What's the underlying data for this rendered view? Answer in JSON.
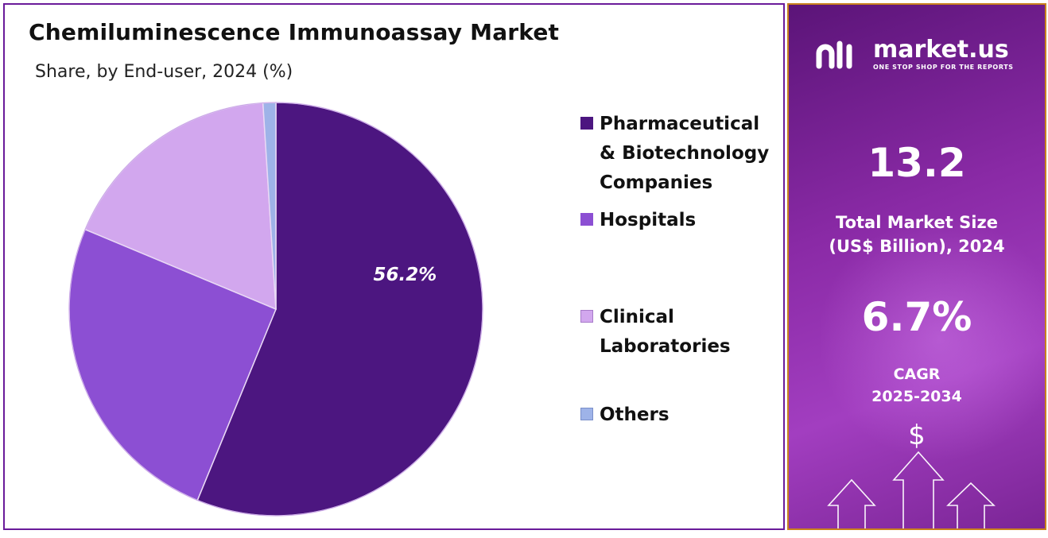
{
  "chart_data": {
    "type": "pie",
    "title": "Chemiluminescence Immunoassay Market",
    "subtitle": "Share, by End-user, 2024 (%)",
    "slices": [
      {
        "name": "Pharmaceutical & Biotechnology Companies",
        "value": 56.2,
        "color": "#4c1680",
        "label": "56.2%"
      },
      {
        "name": "Hospitals",
        "value": 25.1,
        "color": "#8c4fd3",
        "label": ""
      },
      {
        "name": "Clinical Laboratories",
        "value": 17.7,
        "color": "#d2a7ee",
        "label": ""
      },
      {
        "name": "Others",
        "value": 1.0,
        "color": "#9eb3e8",
        "label": ""
      }
    ],
    "start_angle_deg": 0,
    "legend_position": "right"
  },
  "legend": {
    "items": [
      {
        "lines": [
          "Pharmaceutical",
          "& Biotechnology",
          "Companies"
        ]
      },
      {
        "lines": [
          "Hospitals"
        ]
      },
      {
        "lines": [
          "Clinical",
          "Laboratories"
        ]
      },
      {
        "lines": [
          "Others"
        ]
      }
    ]
  },
  "brand": {
    "name": "market.us",
    "tagline": "ONE STOP SHOP FOR THE REPORTS",
    "accent": "#a23ec0",
    "logo_icon": "market-us-logo-icon"
  },
  "stats": {
    "market_size_value": "13.2",
    "market_size_label_1": "Total Market Size",
    "market_size_label_2": "(US$ Billion), 2024",
    "cagr_value": "6.7%",
    "cagr_label_1": "CAGR",
    "cagr_label_2": "2025-2034"
  },
  "decor": {
    "dollar_symbol": "$",
    "icons": [
      "dollar-icon",
      "up-arrow-icon"
    ]
  }
}
